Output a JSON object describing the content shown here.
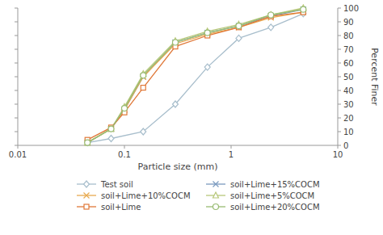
{
  "chart_data": {
    "type": "line",
    "xlabel": "Particle size (mm)",
    "ylabel": "Percent Finer",
    "log": "x",
    "xlim": [
      0.01,
      10
    ],
    "ylim": [
      0,
      100
    ],
    "xticks": [
      0.01,
      0.1,
      1,
      10
    ],
    "yticks": [
      0,
      10,
      20,
      30,
      40,
      50,
      60,
      70,
      80,
      90,
      100
    ],
    "grid": false,
    "legend": "bottom",
    "series": [
      {
        "name": "Test soil",
        "color": "#a8becc",
        "marker": "diamond",
        "x": [
          0.045,
          0.075,
          0.15,
          0.3,
          0.6,
          1.18,
          2.36,
          4.75
        ],
        "values": [
          2,
          5,
          10,
          30,
          57,
          78,
          86,
          96
        ]
      },
      {
        "name": "soil+Lime+15%COCM",
        "color": "#7a9abf",
        "marker": "x",
        "x": [
          0.045,
          0.075,
          0.1,
          0.15,
          0.3,
          0.6,
          1.18,
          2.36,
          4.75
        ],
        "values": [
          2,
          12,
          26,
          50,
          75,
          82,
          87,
          94,
          99
        ]
      },
      {
        "name": "soil+Lime+10%COCM",
        "color": "#e8aa50",
        "marker": "x",
        "x": [
          0.045,
          0.075,
          0.1,
          0.15,
          0.3,
          0.6,
          1.18,
          2.36,
          4.75
        ],
        "values": [
          2,
          12,
          26,
          50,
          74,
          81,
          86,
          93,
          97
        ]
      },
      {
        "name": "soil+Lime+5%COCM",
        "color": "#b8c87a",
        "marker": "triangle",
        "x": [
          0.045,
          0.075,
          0.1,
          0.15,
          0.3,
          0.6,
          1.18,
          2.36,
          4.75
        ],
        "values": [
          2,
          12,
          28,
          52,
          76,
          83,
          88,
          95,
          100
        ]
      },
      {
        "name": "soil+Lime",
        "color": "#e07838",
        "marker": "square",
        "x": [
          0.045,
          0.075,
          0.1,
          0.15,
          0.3,
          0.6,
          1.18,
          2.36,
          4.75
        ],
        "values": [
          4,
          13,
          24,
          42,
          72,
          80,
          86,
          94,
          97
        ]
      },
      {
        "name": "soil+Lime+20%COCM",
        "color": "#98bc72",
        "marker": "circle",
        "x": [
          0.045,
          0.075,
          0.1,
          0.15,
          0.3,
          0.6,
          1.18,
          2.36,
          4.75
        ],
        "values": [
          2,
          12,
          27,
          51,
          75,
          82,
          87,
          95,
          99
        ]
      }
    ]
  }
}
